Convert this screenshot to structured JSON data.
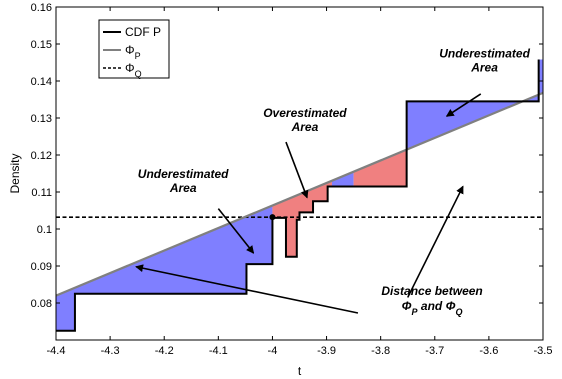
{
  "chart_data": {
    "type": "line",
    "xlabel": "t",
    "ylabel": "Density",
    "xlim": [
      -4.4,
      -3.5
    ],
    "ylim": [
      0.07,
      0.16
    ],
    "xticks": [
      "-4.4",
      "-4.3",
      "-4.2",
      "-4.1",
      "-4",
      "-3.9",
      "-3.8",
      "-3.7",
      "-3.6",
      "-3.5"
    ],
    "yticks": [
      "0.08",
      "0.09",
      "0.1",
      "0.11",
      "0.12",
      "0.13",
      "0.14",
      "0.15",
      "0.16"
    ],
    "legend": {
      "placement": "top-left",
      "entries": [
        {
          "label": "CDF P",
          "style": "solid",
          "color": "#000000"
        },
        {
          "label": "Φ",
          "sub": "P",
          "style": "solid",
          "color": "#808080"
        },
        {
          "label": "Φ",
          "sub": "Q",
          "style": "dashed",
          "color": "#000000"
        }
      ]
    },
    "series": [
      {
        "name": "CDF P",
        "kind": "step",
        "color": "#000000",
        "points": [
          [
            -4.4,
            0.0725
          ],
          [
            -4.365,
            0.0725
          ],
          [
            -4.365,
            0.0825
          ],
          [
            -4.048,
            0.0825
          ],
          [
            -4.048,
            0.0905
          ],
          [
            -4.0,
            0.0905
          ],
          [
            -4.0,
            0.103
          ],
          [
            -3.975,
            0.103
          ],
          [
            -3.975,
            0.0925
          ],
          [
            -3.955,
            0.0925
          ],
          [
            -3.955,
            0.1025
          ],
          [
            -3.95,
            0.1025
          ],
          [
            -3.95,
            0.1045
          ],
          [
            -3.925,
            0.1045
          ],
          [
            -3.925,
            0.1075
          ],
          [
            -3.898,
            0.1075
          ],
          [
            -3.898,
            0.1115
          ],
          [
            -3.752,
            0.1115
          ],
          [
            -3.752,
            0.1345
          ],
          [
            -3.508,
            0.1345
          ],
          [
            -3.508,
            0.1458
          ]
        ]
      },
      {
        "name": "Φ",
        "kind": "line",
        "color": "#808080",
        "points": [
          [
            -4.4,
            0.082
          ],
          [
            -3.5,
            0.1368
          ]
        ]
      },
      {
        "name": "Φ",
        "kind": "hline",
        "style": "dashed",
        "color": "#000000",
        "points": [
          [
            -4.4,
            0.1032
          ],
          [
            -3.5,
            0.1032
          ]
        ]
      }
    ],
    "regions": [
      {
        "kind": "under",
        "color": "#7f7fff",
        "x_range": [
          -4.4,
          -4.0
        ]
      },
      {
        "kind": "over",
        "color": "#f08080",
        "x_range": [
          -4.0,
          -3.89
        ]
      },
      {
        "kind": "under",
        "color": "#7f7fff",
        "x_range": [
          -3.89,
          -3.85
        ]
      },
      {
        "kind": "over",
        "color": "#f08080",
        "x_range": [
          -3.85,
          -3.752
        ]
      },
      {
        "kind": "under",
        "color": "#7f7fff",
        "x_range": [
          -3.752,
          -3.5
        ]
      }
    ],
    "marker": {
      "x": -4.0,
      "y": 0.1032
    },
    "annotations": [
      {
        "id": "under1",
        "lines": [
          "Underestimated",
          "Area"
        ],
        "text_at": [
          -4.165,
          0.1138
        ],
        "arrow_from": [
          -4.1,
          0.1055
        ],
        "arrow_to": [
          -4.035,
          0.0935
        ]
      },
      {
        "id": "over",
        "lines": [
          "Overestimated",
          "Area"
        ],
        "text_at": [
          -3.94,
          0.1303
        ],
        "arrow_from": [
          -3.975,
          0.1235
        ],
        "arrow_to": [
          -3.936,
          0.1085
        ]
      },
      {
        "id": "under2",
        "lines": [
          "Underestimated",
          "Area"
        ],
        "text_at": [
          -3.608,
          0.1463
        ],
        "arrow_from": [
          -3.615,
          0.1365
        ],
        "arrow_to": [
          -3.678,
          0.1305
        ]
      },
      {
        "id": "dist",
        "lines": [
          "Distance between"
        ],
        "subs": [
          "P",
          "Q"
        ],
        "text_at": [
          -3.705,
          0.0822
        ],
        "arrow_from": [
          -3.842,
          0.0773
        ],
        "arrow_to": [
          -4.252,
          0.0898
        ],
        "arrow2_from": [
          -3.75,
          0.0815
        ],
        "arrow2_to": [
          -3.648,
          0.1115
        ]
      }
    ]
  }
}
